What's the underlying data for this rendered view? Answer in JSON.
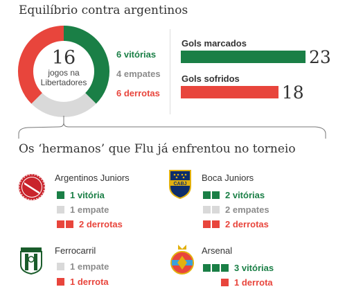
{
  "header": {
    "title": "Equilíbrio contra argentinos",
    "subtitle": "Os ‘hermanos’ que Flu já enfrentou no torneio"
  },
  "summary": {
    "games": "16",
    "games_label_1": "jogos na",
    "games_label_2": "Libertadores",
    "wins_label": "6 vitórias",
    "draws_label": "4 empates",
    "losses_label": "6 derrotas"
  },
  "goals": {
    "scored_label": "Gols marcados",
    "scored_value": "23",
    "conceded_label": "Gols sofridos",
    "conceded_value": "18"
  },
  "colors": {
    "win": "#1a7f46",
    "draw": "#d9d9d9",
    "loss": "#e8453c",
    "draw_text": "#8c8c8c"
  },
  "chart_data": [
    {
      "type": "pie",
      "categories": [
        "vitórias",
        "empates",
        "derrotas"
      ],
      "values": [
        6,
        4,
        6
      ]
    },
    {
      "type": "bar",
      "categories": [
        "Gols marcados",
        "Gols sofridos"
      ],
      "values": [
        23,
        18
      ]
    }
  ],
  "teams": [
    {
      "name": "Argentinos Juniors",
      "badge_icon": "argentinos-juniors-crest-icon",
      "records": [
        {
          "kind": "win",
          "count": 1,
          "label": "1 vitória"
        },
        {
          "kind": "draw",
          "count": 1,
          "label": "1 empate"
        },
        {
          "kind": "loss",
          "count": 2,
          "label": "2 derrotas"
        }
      ]
    },
    {
      "name": "Boca Juniors",
      "badge_icon": "boca-juniors-crest-icon",
      "records": [
        {
          "kind": "win",
          "count": 2,
          "label": "2 vitórias"
        },
        {
          "kind": "draw",
          "count": 2,
          "label": "2 empates"
        },
        {
          "kind": "loss",
          "count": 2,
          "label": "2 derrotas"
        }
      ]
    },
    {
      "name": "Ferrocarril",
      "badge_icon": "ferrocarril-oeste-crest-icon",
      "records": [
        {
          "kind": "draw",
          "count": 1,
          "label": "1 empate"
        },
        {
          "kind": "loss",
          "count": 1,
          "label": "1 derrota"
        }
      ]
    },
    {
      "name": "Arsenal",
      "badge_icon": "arsenal-sarandi-crest-icon",
      "records": [
        {
          "kind": "win",
          "count": 3,
          "label": "3 vitórias"
        },
        {
          "kind": "loss",
          "count": 1,
          "label": "1 derrota"
        }
      ]
    }
  ]
}
